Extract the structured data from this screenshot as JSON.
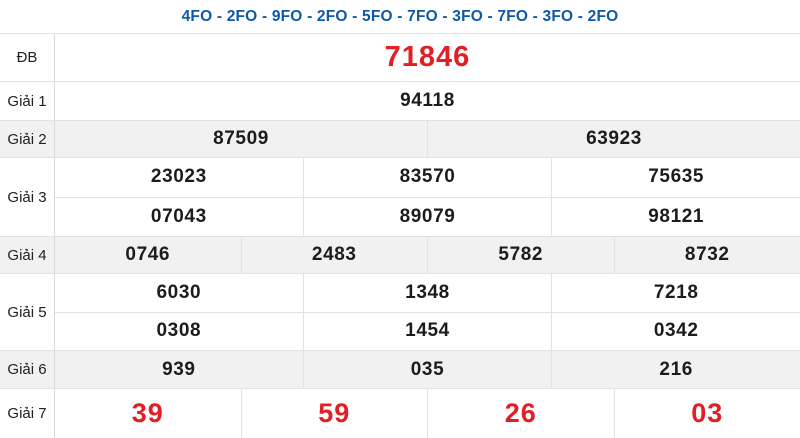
{
  "header": {
    "title": "4FO - 2FO - 9FO - 2FO - 5FO - 7FO - 3FO - 7FO - 3FO - 2FO"
  },
  "colors": {
    "header_blue": "#0e58a8",
    "accent_red": "#e31e24",
    "number_black": "#1c1c1c",
    "shaded_row_bg": "#f1f1f1",
    "border_gray": "#e2e2e2"
  },
  "table": {
    "rows": [
      {
        "label": "ĐB",
        "highlight": true,
        "shaded": false,
        "lines": [
          [
            "71846"
          ]
        ]
      },
      {
        "label": "Giải 1",
        "highlight": false,
        "shaded": false,
        "lines": [
          [
            "94118"
          ]
        ]
      },
      {
        "label": "Giải 2",
        "highlight": false,
        "shaded": true,
        "lines": [
          [
            "87509",
            "63923"
          ]
        ]
      },
      {
        "label": "Giải 3",
        "highlight": false,
        "shaded": false,
        "lines": [
          [
            "23023",
            "83570",
            "75635"
          ],
          [
            "07043",
            "89079",
            "98121"
          ]
        ]
      },
      {
        "label": "Giải 4",
        "highlight": false,
        "shaded": true,
        "lines": [
          [
            "0746",
            "2483",
            "5782",
            "8732"
          ]
        ]
      },
      {
        "label": "Giải 5",
        "highlight": false,
        "shaded": false,
        "lines": [
          [
            "6030",
            "1348",
            "7218"
          ],
          [
            "0308",
            "1454",
            "0342"
          ]
        ]
      },
      {
        "label": "Giải 6",
        "highlight": false,
        "shaded": true,
        "lines": [
          [
            "939",
            "035",
            "216"
          ]
        ]
      },
      {
        "label": "Giải 7",
        "highlight": true,
        "shaded": false,
        "lines": [
          [
            "39",
            "59",
            "26",
            "03"
          ]
        ]
      }
    ]
  }
}
